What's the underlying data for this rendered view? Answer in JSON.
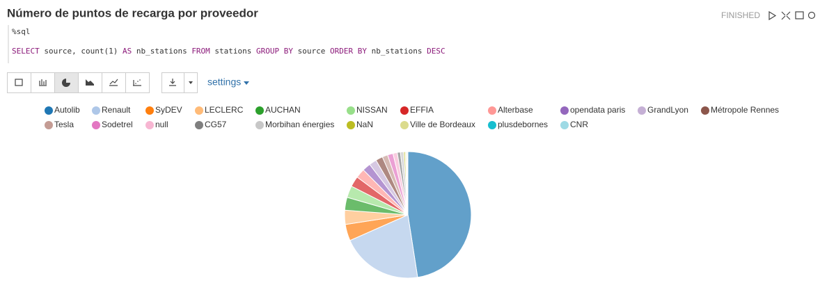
{
  "paragraph": {
    "title": "Número de puntos de recarga por proveedor",
    "status": "FINISHED",
    "directive": "%sql",
    "query": [
      {
        "text": "SELECT",
        "color": "#8b1a7a"
      },
      {
        "text": " source, count(1) ",
        "color": "#333333"
      },
      {
        "text": "AS",
        "color": "#8b1a7a"
      },
      {
        "text": " nb_stations ",
        "color": "#333333"
      },
      {
        "text": "FROM",
        "color": "#8b1a7a"
      },
      {
        "text": " stations ",
        "color": "#333333"
      },
      {
        "text": "GROUP BY",
        "color": "#8b1a7a"
      },
      {
        "text": " source ",
        "color": "#333333"
      },
      {
        "text": "ORDER BY",
        "color": "#8b1a7a"
      },
      {
        "text": " nb_stations ",
        "color": "#333333"
      },
      {
        "text": "DESC",
        "color": "#8b1a7a"
      }
    ],
    "settings": "settings"
  },
  "chart_data": {
    "type": "pie",
    "legend": "top",
    "categories": [
      "Autolib",
      "Renault",
      "SyDEV",
      "LECLERC",
      "AUCHAN",
      "NISSAN",
      "EFFIA",
      "Alterbase",
      "opendata paris",
      "GrandLyon",
      "Métropole Rennes",
      "Tesla",
      "Sodetrel",
      "null",
      "CG57",
      "Morbihan énergies",
      "NaN",
      "Ville de Bordeaux",
      "plusdebornes",
      "CNR"
    ],
    "values": [
      47.5,
      20.8,
      4.2,
      3.6,
      3.3,
      3.0,
      2.7,
      2.4,
      2.1,
      1.9,
      1.8,
      1.4,
      1.4,
      1.1,
      0.8,
      0.8,
      0.4,
      0.3,
      0.2,
      0.2
    ],
    "colors": [
      "#1f77b4",
      "#aec7e8",
      "#ff7f0e",
      "#ffbb78",
      "#2ca02c",
      "#98df8a",
      "#d62728",
      "#ff9896",
      "#9467bd",
      "#c5b0d5",
      "#8c564b",
      "#c49c94",
      "#e377c2",
      "#f7b6d2",
      "#7f7f7f",
      "#c7c7c7",
      "#bcbd22",
      "#dbdb8d",
      "#17becf",
      "#9edae5"
    ]
  }
}
